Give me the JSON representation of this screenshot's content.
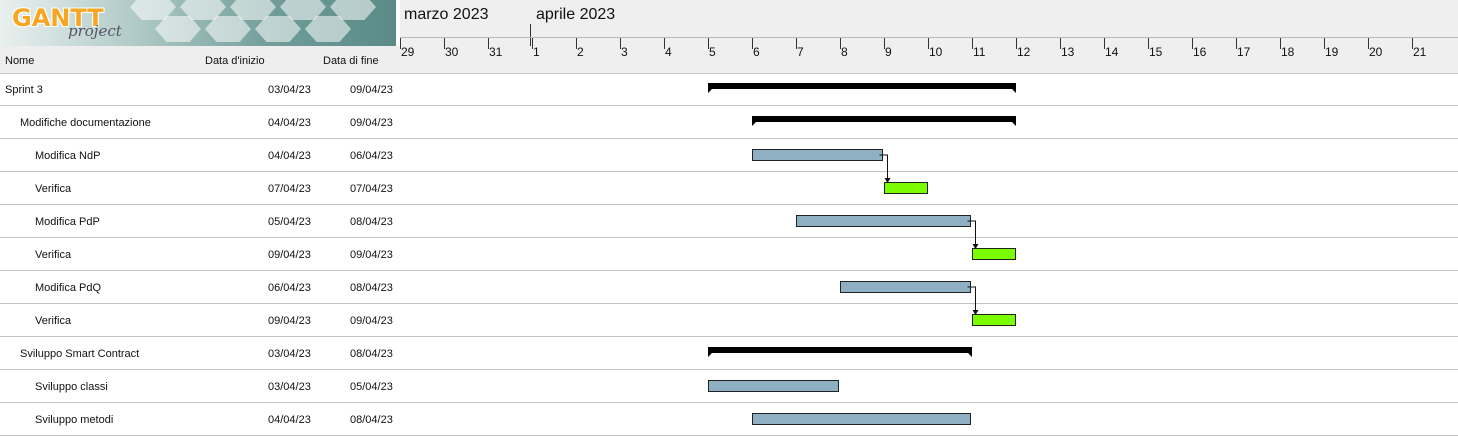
{
  "app": {
    "logo_main": "GANTT",
    "logo_sub": "project"
  },
  "columns": {
    "name": "Nome",
    "start": "Data d'inizio",
    "end": "Data di fine"
  },
  "months": [
    {
      "label": "marzo 2023",
      "first_day": "29"
    },
    {
      "label": "aprile 2023",
      "first_day": "1"
    }
  ],
  "days": [
    "29",
    "30",
    "31",
    "1",
    "2",
    "3",
    "4",
    "5",
    "6",
    "7",
    "8",
    "9",
    "10",
    "11",
    "12",
    "13",
    "14",
    "15",
    "16",
    "17",
    "18",
    "19",
    "20",
    "21"
  ],
  "colors": {
    "task": "#8fb0c3",
    "milestone": "#7cfc00",
    "summary": "#000000",
    "grid": "#c2c2c2"
  },
  "tasks": [
    {
      "name": "Sprint 3",
      "level": 0,
      "type": "summary",
      "start": "03/04/23",
      "end": "09/04/23"
    },
    {
      "name": "Modifiche documentazione",
      "level": 1,
      "type": "summary",
      "start": "04/04/23",
      "end": "09/04/23"
    },
    {
      "name": "Modifica NdP",
      "level": 2,
      "type": "task",
      "start": "04/04/23",
      "end": "06/04/23"
    },
    {
      "name": "Verifica",
      "level": 2,
      "type": "check",
      "start": "07/04/23",
      "end": "07/04/23"
    },
    {
      "name": "Modifica PdP",
      "level": 2,
      "type": "task",
      "start": "05/04/23",
      "end": "08/04/23"
    },
    {
      "name": "Verifica",
      "level": 2,
      "type": "check",
      "start": "09/04/23",
      "end": "09/04/23"
    },
    {
      "name": "Modifica PdQ",
      "level": 2,
      "type": "task",
      "start": "06/04/23",
      "end": "08/04/23"
    },
    {
      "name": "Verifica",
      "level": 2,
      "type": "check",
      "start": "09/04/23",
      "end": "09/04/23"
    },
    {
      "name": "Sviluppo Smart Contract",
      "level": 1,
      "type": "summary",
      "start": "03/04/23",
      "end": "08/04/23"
    },
    {
      "name": "Sviluppo classi",
      "level": 2,
      "type": "task",
      "start": "03/04/23",
      "end": "05/04/23"
    },
    {
      "name": "Sviluppo metodi",
      "level": 2,
      "type": "task",
      "start": "04/04/23",
      "end": "08/04/23"
    }
  ],
  "dependencies": [
    {
      "from": 2,
      "to": 3
    },
    {
      "from": 4,
      "to": 5
    },
    {
      "from": 6,
      "to": 7
    }
  ]
}
